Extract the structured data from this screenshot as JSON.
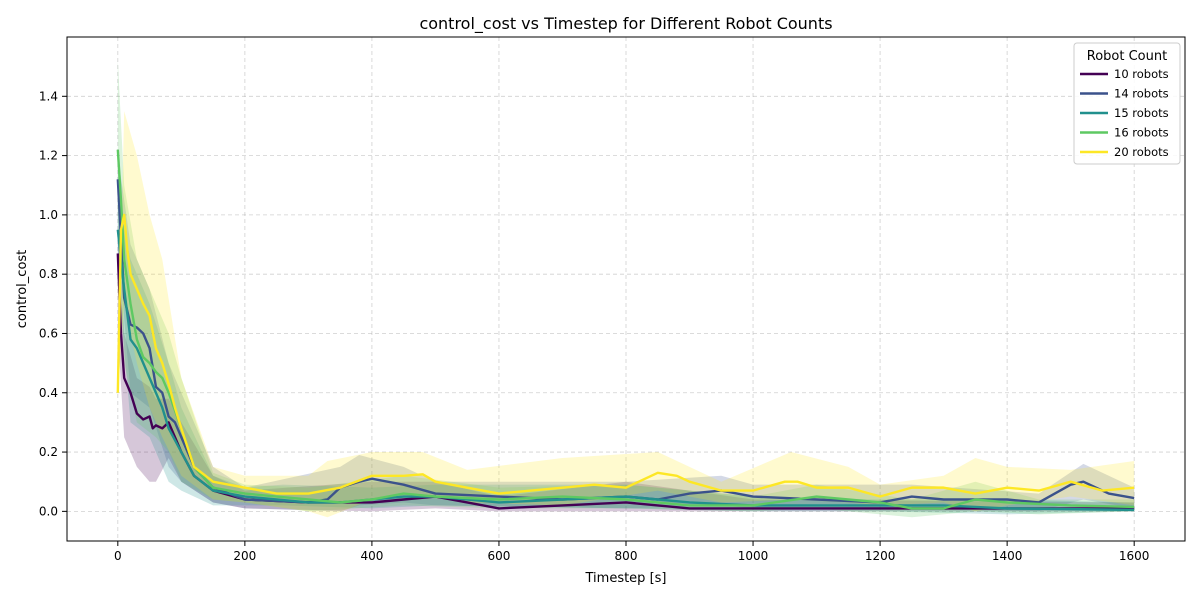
{
  "chart_data": {
    "type": "line",
    "title": "control_cost vs Timestep for Different Robot Counts",
    "xlabel": "Timestep [s]",
    "ylabel": "control_cost",
    "xlim": [
      -80,
      1680
    ],
    "ylim": [
      -0.1,
      1.6
    ],
    "xticks": [
      0,
      200,
      400,
      600,
      800,
      1000,
      1200,
      1400,
      1600
    ],
    "yticks": [
      0.0,
      0.2,
      0.4,
      0.6,
      0.8,
      1.0,
      1.2,
      1.4
    ],
    "xtick_labels": [
      "0",
      "200",
      "400",
      "600",
      "800",
      "1000",
      "1200",
      "1400",
      "1600"
    ],
    "ytick_labels": [
      "0.0",
      "0.2",
      "0.4",
      "0.6",
      "0.8",
      "1.0",
      "1.2",
      "1.4"
    ],
    "grid": true,
    "legend_title": "Robot Count",
    "legend_position": "top-right",
    "series": [
      {
        "name": "10 robots",
        "color": "#440154",
        "points": [
          [
            0,
            0.87
          ],
          [
            5,
            0.6
          ],
          [
            10,
            0.45
          ],
          [
            20,
            0.4
          ],
          [
            30,
            0.33
          ],
          [
            40,
            0.31
          ],
          [
            50,
            0.32
          ],
          [
            55,
            0.28
          ],
          [
            60,
            0.29
          ],
          [
            70,
            0.28
          ],
          [
            80,
            0.3
          ],
          [
            90,
            0.25
          ],
          [
            100,
            0.2
          ],
          [
            120,
            0.12
          ],
          [
            150,
            0.07
          ],
          [
            200,
            0.04
          ],
          [
            300,
            0.03
          ],
          [
            400,
            0.03
          ],
          [
            450,
            0.04
          ],
          [
            500,
            0.05
          ],
          [
            550,
            0.03
          ],
          [
            600,
            0.01
          ],
          [
            700,
            0.02
          ],
          [
            800,
            0.03
          ],
          [
            900,
            0.01
          ],
          [
            1000,
            0.01
          ],
          [
            1200,
            0.01
          ],
          [
            1400,
            0.01
          ],
          [
            1600,
            0.01
          ]
        ],
        "band": [
          [
            0,
            0.95,
            0.6
          ],
          [
            10,
            0.6,
            0.25
          ],
          [
            30,
            0.45,
            0.15
          ],
          [
            50,
            0.42,
            0.1
          ],
          [
            60,
            0.38,
            0.1
          ],
          [
            80,
            0.38,
            0.18
          ],
          [
            100,
            0.3,
            0.1
          ],
          [
            150,
            0.12,
            0.03
          ],
          [
            200,
            0.07,
            0.01
          ],
          [
            400,
            0.1,
            0.0
          ],
          [
            500,
            0.1,
            0.01
          ],
          [
            600,
            0.05,
            0.0
          ],
          [
            800,
            0.1,
            0.0
          ],
          [
            1000,
            0.04,
            0.0
          ],
          [
            1600,
            0.03,
            0.0
          ]
        ]
      },
      {
        "name": "14 robots",
        "color": "#3b528b",
        "points": [
          [
            0,
            1.12
          ],
          [
            10,
            0.72
          ],
          [
            20,
            0.63
          ],
          [
            30,
            0.62
          ],
          [
            40,
            0.6
          ],
          [
            50,
            0.55
          ],
          [
            60,
            0.42
          ],
          [
            70,
            0.4
          ],
          [
            80,
            0.32
          ],
          [
            90,
            0.3
          ],
          [
            100,
            0.25
          ],
          [
            120,
            0.15
          ],
          [
            150,
            0.08
          ],
          [
            200,
            0.04
          ],
          [
            300,
            0.03
          ],
          [
            330,
            0.04
          ],
          [
            350,
            0.08
          ],
          [
            380,
            0.1
          ],
          [
            400,
            0.11
          ],
          [
            450,
            0.09
          ],
          [
            500,
            0.06
          ],
          [
            600,
            0.05
          ],
          [
            700,
            0.04
          ],
          [
            800,
            0.05
          ],
          [
            850,
            0.04
          ],
          [
            900,
            0.06
          ],
          [
            950,
            0.07
          ],
          [
            1000,
            0.05
          ],
          [
            1100,
            0.04
          ],
          [
            1200,
            0.03
          ],
          [
            1250,
            0.05
          ],
          [
            1300,
            0.04
          ],
          [
            1400,
            0.04
          ],
          [
            1450,
            0.03
          ],
          [
            1500,
            0.09
          ],
          [
            1520,
            0.1
          ],
          [
            1560,
            0.06
          ],
          [
            1600,
            0.045
          ]
        ],
        "band": [
          [
            0,
            1.2,
            0.9
          ],
          [
            20,
            0.9,
            0.4
          ],
          [
            50,
            0.75,
            0.35
          ],
          [
            80,
            0.5,
            0.15
          ],
          [
            100,
            0.4,
            0.1
          ],
          [
            150,
            0.15,
            0.03
          ],
          [
            200,
            0.08,
            0.01
          ],
          [
            350,
            0.15,
            0.0
          ],
          [
            380,
            0.19,
            0.02
          ],
          [
            450,
            0.15,
            0.03
          ],
          [
            500,
            0.1,
            0.02
          ],
          [
            800,
            0.1,
            0.01
          ],
          [
            950,
            0.12,
            0.02
          ],
          [
            1000,
            0.09,
            0.01
          ],
          [
            1250,
            0.09,
            0.01
          ],
          [
            1450,
            0.06,
            0.0
          ],
          [
            1520,
            0.16,
            0.04
          ],
          [
            1600,
            0.08,
            0.01
          ]
        ]
      },
      {
        "name": "15 robots",
        "color": "#21908d",
        "points": [
          [
            0,
            0.95
          ],
          [
            10,
            0.75
          ],
          [
            20,
            0.58
          ],
          [
            30,
            0.55
          ],
          [
            40,
            0.5
          ],
          [
            50,
            0.45
          ],
          [
            60,
            0.4
          ],
          [
            70,
            0.35
          ],
          [
            80,
            0.28
          ],
          [
            100,
            0.2
          ],
          [
            120,
            0.12
          ],
          [
            150,
            0.07
          ],
          [
            200,
            0.05
          ],
          [
            300,
            0.03
          ],
          [
            350,
            0.03
          ],
          [
            400,
            0.04
          ],
          [
            450,
            0.05
          ],
          [
            500,
            0.05
          ],
          [
            600,
            0.03
          ],
          [
            700,
            0.04
          ],
          [
            800,
            0.05
          ],
          [
            900,
            0.03
          ],
          [
            1000,
            0.02
          ],
          [
            1200,
            0.02
          ],
          [
            1300,
            0.02
          ],
          [
            1400,
            0.01
          ],
          [
            1600,
            0.005
          ]
        ],
        "band": [
          [
            0,
            1.05,
            0.8
          ],
          [
            20,
            0.85,
            0.3
          ],
          [
            50,
            0.7,
            0.25
          ],
          [
            80,
            0.5,
            0.1
          ],
          [
            100,
            0.35,
            0.07
          ],
          [
            150,
            0.12,
            0.02
          ],
          [
            200,
            0.08,
            0.02
          ],
          [
            260,
            0.09,
            0.02
          ],
          [
            400,
            0.08,
            0.01
          ],
          [
            500,
            0.09,
            0.02
          ],
          [
            800,
            0.09,
            0.01
          ],
          [
            1000,
            0.05,
            0.0
          ],
          [
            1200,
            0.04,
            0.0
          ],
          [
            1400,
            0.04,
            -0.01
          ],
          [
            1600,
            0.03,
            0.0
          ]
        ]
      },
      {
        "name": "16 robots",
        "color": "#5ec962",
        "points": [
          [
            0,
            1.22
          ],
          [
            5,
            1.05
          ],
          [
            10,
            0.85
          ],
          [
            20,
            0.7
          ],
          [
            30,
            0.58
          ],
          [
            40,
            0.52
          ],
          [
            50,
            0.5
          ],
          [
            60,
            0.47
          ],
          [
            70,
            0.45
          ],
          [
            80,
            0.4
          ],
          [
            100,
            0.28
          ],
          [
            120,
            0.15
          ],
          [
            150,
            0.08
          ],
          [
            200,
            0.06
          ],
          [
            250,
            0.05
          ],
          [
            300,
            0.04
          ],
          [
            350,
            0.03
          ],
          [
            400,
            0.04
          ],
          [
            450,
            0.06
          ],
          [
            500,
            0.05
          ],
          [
            600,
            0.04
          ],
          [
            700,
            0.05
          ],
          [
            800,
            0.04
          ],
          [
            900,
            0.02
          ],
          [
            1000,
            0.02
          ],
          [
            1100,
            0.05
          ],
          [
            1150,
            0.04
          ],
          [
            1200,
            0.03
          ],
          [
            1250,
            0.01
          ],
          [
            1300,
            0.01
          ],
          [
            1350,
            0.04
          ],
          [
            1400,
            0.03
          ],
          [
            1500,
            0.02
          ],
          [
            1600,
            0.015
          ]
        ],
        "band": [
          [
            0,
            1.52,
            1.0
          ],
          [
            10,
            1.1,
            0.5
          ],
          [
            30,
            0.85,
            0.3
          ],
          [
            60,
            0.7,
            0.25
          ],
          [
            80,
            0.6,
            0.2
          ],
          [
            100,
            0.45,
            0.1
          ],
          [
            150,
            0.13,
            0.04
          ],
          [
            200,
            0.09,
            0.03
          ],
          [
            300,
            0.08,
            0.0
          ],
          [
            450,
            0.12,
            0.02
          ],
          [
            600,
            0.08,
            0.01
          ],
          [
            800,
            0.09,
            0.01
          ],
          [
            1000,
            0.05,
            0.0
          ],
          [
            1100,
            0.09,
            0.01
          ],
          [
            1250,
            0.04,
            -0.02
          ],
          [
            1350,
            0.1,
            0.0
          ],
          [
            1450,
            0.04,
            -0.01
          ],
          [
            1600,
            0.04,
            0.0
          ]
        ]
      },
      {
        "name": "20 robots",
        "color": "#fde725",
        "points": [
          [
            0,
            0.4
          ],
          [
            5,
            0.95
          ],
          [
            10,
            1.0
          ],
          [
            15,
            0.88
          ],
          [
            20,
            0.8
          ],
          [
            30,
            0.75
          ],
          [
            40,
            0.7
          ],
          [
            50,
            0.66
          ],
          [
            60,
            0.55
          ],
          [
            70,
            0.5
          ],
          [
            80,
            0.43
          ],
          [
            90,
            0.35
          ],
          [
            100,
            0.28
          ],
          [
            120,
            0.15
          ],
          [
            150,
            0.1
          ],
          [
            200,
            0.08
          ],
          [
            250,
            0.06
          ],
          [
            300,
            0.06
          ],
          [
            350,
            0.08
          ],
          [
            400,
            0.12
          ],
          [
            450,
            0.12
          ],
          [
            480,
            0.125
          ],
          [
            500,
            0.1
          ],
          [
            550,
            0.08
          ],
          [
            600,
            0.06
          ],
          [
            700,
            0.08
          ],
          [
            750,
            0.09
          ],
          [
            800,
            0.08
          ],
          [
            850,
            0.13
          ],
          [
            880,
            0.12
          ],
          [
            900,
            0.1
          ],
          [
            950,
            0.07
          ],
          [
            1000,
            0.07
          ],
          [
            1050,
            0.1
          ],
          [
            1070,
            0.1
          ],
          [
            1100,
            0.08
          ],
          [
            1150,
            0.08
          ],
          [
            1200,
            0.05
          ],
          [
            1250,
            0.08
          ],
          [
            1300,
            0.08
          ],
          [
            1350,
            0.06
          ],
          [
            1400,
            0.08
          ],
          [
            1450,
            0.07
          ],
          [
            1500,
            0.1
          ],
          [
            1550,
            0.07
          ],
          [
            1600,
            0.08
          ]
        ],
        "band": [
          [
            0,
            0.42,
            0.38
          ],
          [
            10,
            1.35,
            0.7
          ],
          [
            30,
            1.2,
            0.5
          ],
          [
            50,
            1.0,
            0.35
          ],
          [
            70,
            0.85,
            0.25
          ],
          [
            100,
            0.45,
            0.12
          ],
          [
            150,
            0.15,
            0.04
          ],
          [
            200,
            0.12,
            0.03
          ],
          [
            300,
            0.12,
            0.0
          ],
          [
            330,
            0.17,
            -0.02
          ],
          [
            400,
            0.2,
            0.04
          ],
          [
            480,
            0.2,
            0.05
          ],
          [
            550,
            0.14,
            0.03
          ],
          [
            700,
            0.18,
            0.02
          ],
          [
            850,
            0.2,
            0.07
          ],
          [
            950,
            0.1,
            0.03
          ],
          [
            1060,
            0.2,
            0.04
          ],
          [
            1150,
            0.15,
            0.03
          ],
          [
            1200,
            0.09,
            0.02
          ],
          [
            1300,
            0.12,
            0.03
          ],
          [
            1350,
            0.18,
            0.0
          ],
          [
            1400,
            0.15,
            0.02
          ],
          [
            1500,
            0.14,
            0.05
          ],
          [
            1600,
            0.17,
            0.02
          ]
        ]
      }
    ]
  }
}
